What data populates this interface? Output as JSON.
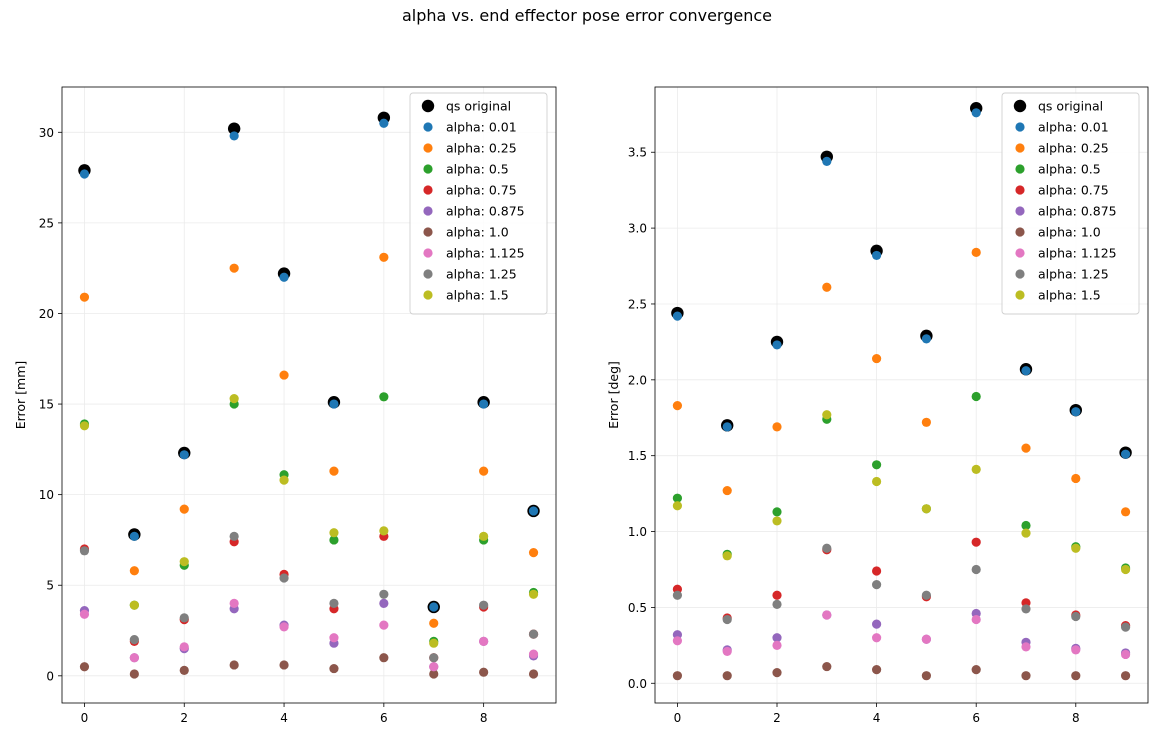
{
  "title": "alpha vs. end effector pose error convergence",
  "colors": {
    "qs original": "#000000",
    "alpha: 0.01": "#1f77b4",
    "alpha: 0.25": "#ff7f0e",
    "alpha: 0.5": "#2ca02c",
    "alpha: 0.75": "#d62728",
    "alpha: 0.875": "#9467bd",
    "alpha: 1.0": "#8c564b",
    "alpha: 1.125": "#e377c2",
    "alpha: 1.25": "#7f7f7f",
    "alpha: 1.5": "#bcbd22"
  },
  "chart_data": [
    {
      "type": "scatter",
      "title": "",
      "xlabel": "",
      "ylabel": "Error [mm]",
      "xlim": [
        -0.45,
        9.45
      ],
      "ylim": [
        -1.5,
        32.5
      ],
      "xticks": [
        0,
        2,
        4,
        6,
        8
      ],
      "yticks": [
        0,
        5,
        10,
        15,
        20,
        25,
        30
      ],
      "grid": true,
      "legend": "upper-right",
      "x": [
        0,
        1,
        2,
        3,
        4,
        5,
        6,
        7,
        8,
        9
      ],
      "series": [
        {
          "name": "qs original",
          "values": [
            27.9,
            7.8,
            12.3,
            30.2,
            22.2,
            15.1,
            30.8,
            3.8,
            15.1,
            9.1
          ]
        },
        {
          "name": "alpha: 0.01",
          "values": [
            27.7,
            7.7,
            12.2,
            29.8,
            22.0,
            15.0,
            30.5,
            3.8,
            15.0,
            9.1
          ]
        },
        {
          "name": "alpha: 0.25",
          "values": [
            20.9,
            5.8,
            9.2,
            22.5,
            16.6,
            11.3,
            23.1,
            2.9,
            11.3,
            6.8
          ]
        },
        {
          "name": "alpha: 0.5",
          "values": [
            13.9,
            3.9,
            6.1,
            15.0,
            11.1,
            7.5,
            15.4,
            1.9,
            7.5,
            4.6
          ]
        },
        {
          "name": "alpha: 0.75",
          "values": [
            7.0,
            1.9,
            3.1,
            7.4,
            5.6,
            3.7,
            7.7,
            1.0,
            3.8,
            2.3
          ]
        },
        {
          "name": "alpha: 0.875",
          "values": [
            3.6,
            1.0,
            1.5,
            3.7,
            2.8,
            1.8,
            4.0,
            0.5,
            1.9,
            1.1
          ]
        },
        {
          "name": "alpha: 1.0",
          "values": [
            0.5,
            0.1,
            0.3,
            0.6,
            0.6,
            0.4,
            1.0,
            0.1,
            0.2,
            0.1
          ]
        },
        {
          "name": "alpha: 1.125",
          "values": [
            3.4,
            1.0,
            1.6,
            4.0,
            2.7,
            2.1,
            2.8,
            0.5,
            1.9,
            1.2
          ]
        },
        {
          "name": "alpha: 1.25",
          "values": [
            6.9,
            2.0,
            3.2,
            7.7,
            5.4,
            4.0,
            4.5,
            1.0,
            3.9,
            2.3
          ]
        },
        {
          "name": "alpha: 1.5",
          "values": [
            13.8,
            3.9,
            6.3,
            15.3,
            10.8,
            7.9,
            8.0,
            1.8,
            7.7,
            4.5
          ]
        }
      ]
    },
    {
      "type": "scatter",
      "title": "",
      "xlabel": "",
      "ylabel": "Error [deg]",
      "xlim": [
        -0.45,
        9.45
      ],
      "ylim": [
        -0.13,
        3.93
      ],
      "xticks": [
        0,
        2,
        4,
        6,
        8
      ],
      "yticks": [
        0.0,
        0.5,
        1.0,
        1.5,
        2.0,
        2.5,
        3.0,
        3.5
      ],
      "grid": true,
      "legend": "upper-right",
      "x": [
        0,
        1,
        2,
        3,
        4,
        5,
        6,
        7,
        8,
        9
      ],
      "series": [
        {
          "name": "qs original",
          "values": [
            2.44,
            1.7,
            2.25,
            3.47,
            2.85,
            2.29,
            3.79,
            2.07,
            1.8,
            1.52
          ]
        },
        {
          "name": "alpha: 0.01",
          "values": [
            2.42,
            1.69,
            2.23,
            3.44,
            2.82,
            2.27,
            3.76,
            2.06,
            1.79,
            1.51
          ]
        },
        {
          "name": "alpha: 0.25",
          "values": [
            1.83,
            1.27,
            1.69,
            2.61,
            2.14,
            1.72,
            2.84,
            1.55,
            1.35,
            1.13
          ]
        },
        {
          "name": "alpha: 0.5",
          "values": [
            1.22,
            0.85,
            1.13,
            1.74,
            1.44,
            1.15,
            1.89,
            1.04,
            0.9,
            0.76
          ]
        },
        {
          "name": "alpha: 0.75",
          "values": [
            0.62,
            0.43,
            0.58,
            0.88,
            0.74,
            0.57,
            0.93,
            0.53,
            0.45,
            0.38
          ]
        },
        {
          "name": "alpha: 0.875",
          "values": [
            0.32,
            0.22,
            0.3,
            0.45,
            0.39,
            0.29,
            0.46,
            0.27,
            0.23,
            0.2
          ]
        },
        {
          "name": "alpha: 1.0",
          "values": [
            0.05,
            0.05,
            0.07,
            0.11,
            0.09,
            0.05,
            0.09,
            0.05,
            0.05,
            0.05
          ]
        },
        {
          "name": "alpha: 1.125",
          "values": [
            0.28,
            0.21,
            0.25,
            0.45,
            0.3,
            0.29,
            0.42,
            0.24,
            0.22,
            0.19
          ]
        },
        {
          "name": "alpha: 1.25",
          "values": [
            0.58,
            0.42,
            0.52,
            0.89,
            0.65,
            0.58,
            0.75,
            0.49,
            0.44,
            0.37
          ]
        },
        {
          "name": "alpha: 1.5",
          "values": [
            1.17,
            0.84,
            1.07,
            1.77,
            1.33,
            1.15,
            1.41,
            0.99,
            0.89,
            0.75
          ]
        }
      ]
    }
  ]
}
